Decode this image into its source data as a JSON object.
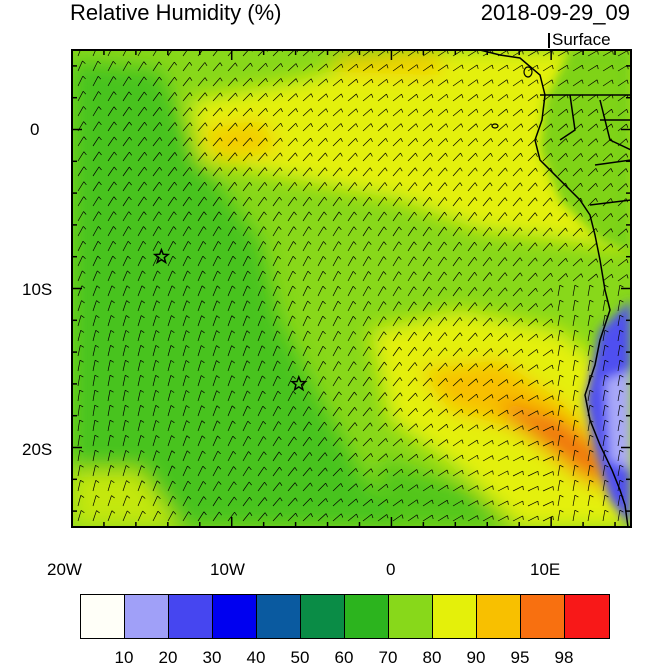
{
  "header": {
    "title": "Relative Humidity (%)",
    "datetime": "2018-09-29_09",
    "level": "Surface"
  },
  "map": {
    "lon_labels": [
      "20W",
      "10W",
      "0",
      "10E"
    ],
    "lat_labels": [
      "0",
      "10S",
      "20S"
    ],
    "colors": {
      "ocean_base": "#88d81a",
      "dry": "#3cbf1e",
      "moist": "#e4f00a",
      "very_moist": "#f8c000",
      "saturated": "#f07010",
      "land_coast": "#5050f0",
      "land_dry": "#a8a8f8",
      "coast_line": "#000000",
      "wind_barb": "#000000"
    },
    "markers": [
      {
        "name": "star",
        "lon": -14.4,
        "lat": -8.0
      },
      {
        "name": "star",
        "lon": -5.8,
        "lat": -16.0
      }
    ]
  },
  "colorbar": {
    "colors": [
      "#fffff8",
      "#a0a0f8",
      "#4646f0",
      "#0000f0",
      "#0a5aa0",
      "#0a8c46",
      "#2cb41e",
      "#88d81a",
      "#e4f00a",
      "#f8c000",
      "#f87010",
      "#f81818"
    ],
    "labels": [
      "10",
      "20",
      "30",
      "40",
      "50",
      "60",
      "70",
      "80",
      "90",
      "95",
      "98"
    ]
  }
}
